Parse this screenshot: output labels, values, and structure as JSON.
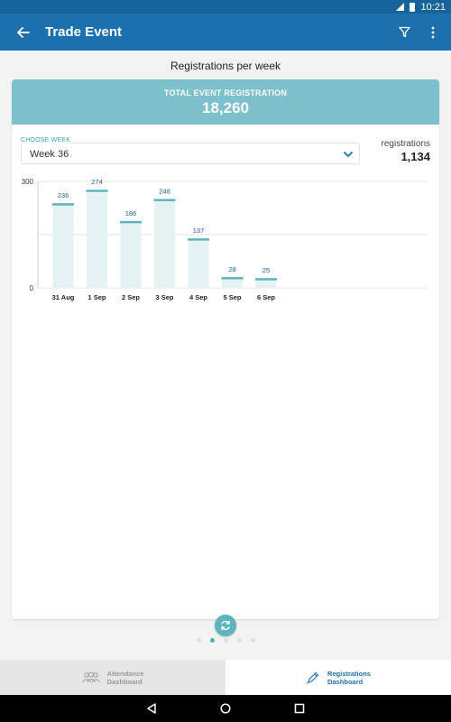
{
  "status_bar": {
    "time": "10:21"
  },
  "app_bar": {
    "title": "Trade Event",
    "back_icon": "arrow-left-icon",
    "filter_icon": "filter-icon",
    "menu_icon": "more-vert-icon"
  },
  "page": {
    "title": "Registrations per week"
  },
  "summary": {
    "label": "TOTAL EVENT REGISTRATION",
    "value": "18,260"
  },
  "week_select": {
    "label": "CHOOSE WEEK",
    "value": "Week 36"
  },
  "registrations": {
    "label": "registrations",
    "value": "1,134"
  },
  "chart_data": {
    "type": "bar",
    "categories": [
      "31 Aug",
      "1 Sep",
      "2 Sep",
      "3 Sep",
      "4 Sep",
      "5 Sep",
      "6 Sep"
    ],
    "values": [
      236,
      274,
      186,
      248,
      137,
      28,
      25
    ],
    "ylim": [
      0,
      300
    ],
    "yticks": [
      "0",
      "300"
    ],
    "grid": true,
    "colors": {
      "bar_fill": "#e5f2f4",
      "bar_top": "#5fb3bf",
      "label": "#1c5f8a"
    }
  },
  "pager": {
    "count": 5,
    "active_index": 1
  },
  "bottom_nav": {
    "attendance": {
      "line1": "Attendance",
      "line2": "Dashboard"
    },
    "registrations": {
      "line1": "Registrations",
      "line2": "Dashboard"
    }
  },
  "colors": {
    "primary": "#1c70ae",
    "accent": "#7cc1cb"
  }
}
